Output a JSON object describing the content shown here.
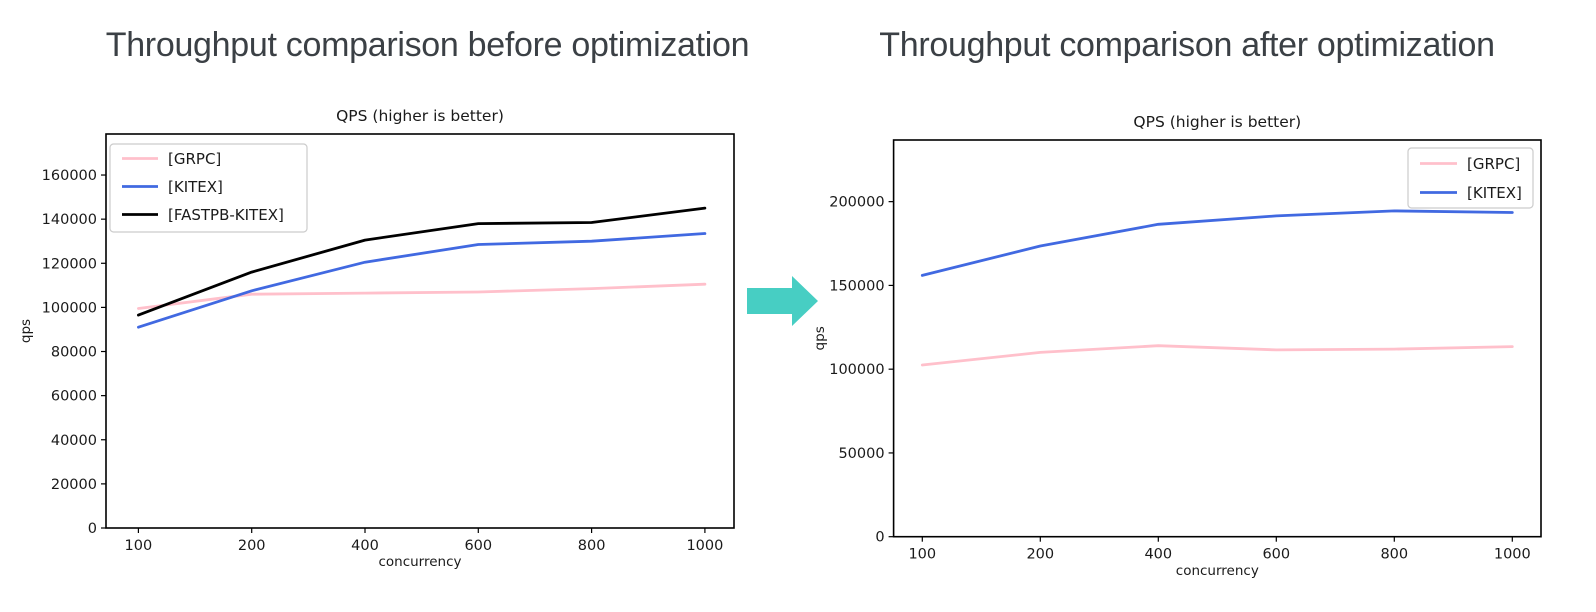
{
  "page": {
    "left_title": "Throughput comparison before optimization",
    "right_title": "Throughput comparison after optimization"
  },
  "arrow": {
    "direction": "right",
    "color": "#47cec3"
  },
  "chart_data": [
    {
      "id": "before",
      "type": "line",
      "title": "QPS (higher is better)",
      "xlabel": "concurrency",
      "ylabel": "qps",
      "categories": [
        "100",
        "200",
        "400",
        "600",
        "800",
        "1000"
      ],
      "series": [
        {
          "name": "[GRPC]",
          "color": "#ffc0cb",
          "values": [
            99500,
            106000,
            106500,
            107000,
            108500,
            110500
          ]
        },
        {
          "name": "[KITEX]",
          "color": "#4169e1",
          "values": [
            91000,
            107500,
            120500,
            128500,
            130000,
            133500
          ]
        },
        {
          "name": "[FASTPB-KITEX]",
          "color": "#000000",
          "values": [
            96500,
            116000,
            130500,
            138000,
            138500,
            145000
          ]
        }
      ],
      "yticks": [
        0,
        20000,
        40000,
        60000,
        80000,
        100000,
        120000,
        140000,
        160000
      ],
      "ylim": [
        0,
        178600
      ],
      "legend_position": "upper left",
      "grid": false
    },
    {
      "id": "after",
      "type": "line",
      "title": "QPS (higher is better)",
      "xlabel": "concurrency",
      "ylabel": "qps",
      "categories": [
        "100",
        "200",
        "400",
        "600",
        "800",
        "1000"
      ],
      "series": [
        {
          "name": "[GRPC]",
          "color": "#ffc0cb",
          "values": [
            102500,
            110000,
            114000,
            111500,
            112000,
            113500
          ]
        },
        {
          "name": "[KITEX]",
          "color": "#4169e1",
          "values": [
            156000,
            173500,
            186500,
            191500,
            194500,
            193500
          ]
        }
      ],
      "yticks": [
        0,
        50000,
        100000,
        150000,
        200000
      ],
      "ylim": [
        0,
        236800
      ],
      "legend_position": "upper right",
      "grid": false
    }
  ]
}
